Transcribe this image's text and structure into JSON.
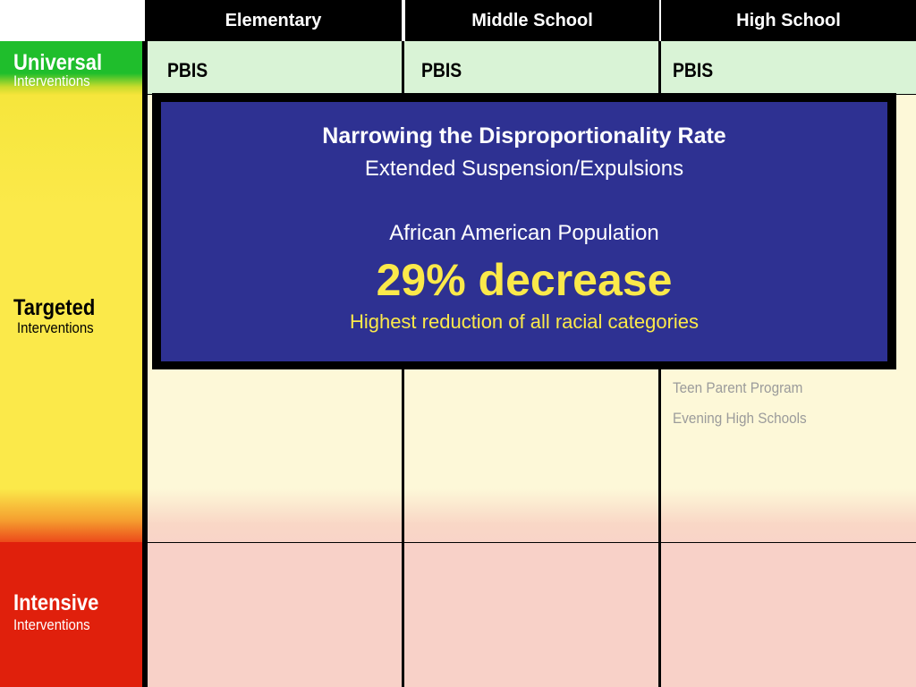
{
  "header": {
    "columns": [
      "Elementary",
      "Middle School",
      "High School"
    ]
  },
  "tiers": {
    "universal": {
      "title": "Universal",
      "subtitle": "Interventions"
    },
    "targeted": {
      "title": "Targeted",
      "subtitle": "Interventions"
    },
    "intensive": {
      "title": "Intensive",
      "subtitle": "Interventions"
    }
  },
  "universal_row": {
    "elementary": "PBIS",
    "middle": "PBIS",
    "high": "PBIS"
  },
  "targeted_row": {
    "high_items": [
      "Teen Parent Program",
      "Evening High Schools"
    ]
  },
  "overlay": {
    "heading": "Narrowing the Disproportionality Rate",
    "subheading": "Extended Suspension/Expulsions",
    "population": "African American Population",
    "stat": "29% decrease",
    "note": "Highest reduction of all racial categories"
  },
  "colors": {
    "universal": "#1fbe2c",
    "targeted": "#fbe94a",
    "intensive": "#e0200c",
    "overlay_bg": "#2e3192",
    "stat": "#fbe94a"
  }
}
